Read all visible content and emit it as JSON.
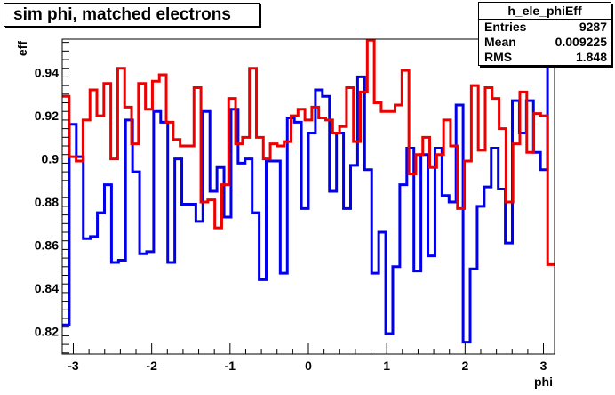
{
  "title": "sim phi, matched electrons",
  "stats": {
    "name": "h_ele_phiEff",
    "rows": [
      {
        "label": "Entries",
        "value": "9287"
      },
      {
        "label": "Mean",
        "value": "0.009225"
      },
      {
        "label": "RMS",
        "value": "1.848"
      }
    ]
  },
  "chart_data": {
    "type": "line",
    "style": "step",
    "xlabel": "phi",
    "ylabel": "eff",
    "xlim": [
      -3.14159,
      3.14159
    ],
    "ylim": [
      0.8095,
      0.9555
    ],
    "xticks": [
      -3,
      -2,
      -1,
      0,
      1,
      2,
      3
    ],
    "xtick_labels": [
      "-3",
      "-2",
      "-1",
      "0",
      "1",
      "2",
      "3"
    ],
    "yticks": [
      0.82,
      0.84,
      0.86,
      0.88,
      0.9,
      0.92,
      0.94
    ],
    "ytick_labels": [
      "0.82",
      "0.84",
      "0.86",
      "0.88",
      "0.9",
      "0.92",
      "0.94"
    ],
    "grid": false,
    "series": [
      {
        "color": "#0000ee",
        "values": [
          0.823,
          0.916,
          0.901,
          0.863,
          0.864,
          0.875,
          0.888,
          0.852,
          0.853,
          0.918,
          0.894,
          0.856,
          0.857,
          0.922,
          0.917,
          0.852,
          0.9,
          0.879,
          0.879,
          0.871,
          0.922,
          0.885,
          0.896,
          0.873,
          0.923,
          0.898,
          0.9,
          0.875,
          0.844,
          0.899,
          0.899,
          0.847,
          0.919,
          0.917,
          0.877,
          0.912,
          0.932,
          0.929,
          0.885,
          0.912,
          0.877,
          0.897,
          0.938,
          0.895,
          0.847,
          0.866,
          0.819,
          0.85,
          0.888,
          0.905,
          0.848,
          0.902,
          0.855,
          0.905,
          0.883,
          0.88,
          0.925,
          0.815,
          0.849,
          0.878,
          0.887,
          0.905,
          0.886,
          0.861,
          0.927,
          0.912,
          0.927,
          0.903,
          0.895,
          0.949
        ]
      },
      {
        "color": "#ee0000",
        "values": [
          0.929,
          0.901,
          0.899,
          0.918,
          0.932,
          0.92,
          0.935,
          0.9,
          0.942,
          0.924,
          0.907,
          0.935,
          0.923,
          0.936,
          0.939,
          0.917,
          0.909,
          0.906,
          0.906,
          0.933,
          0.88,
          0.881,
          0.868,
          0.888,
          0.928,
          0.907,
          0.91,
          0.942,
          0.91,
          0.9,
          0.907,
          0.906,
          0.908,
          0.92,
          0.923,
          0.918,
          0.924,
          0.919,
          0.918,
          0.912,
          0.915,
          0.933,
          0.908,
          0.931,
          0.955,
          0.926,
          0.922,
          0.922,
          0.925,
          0.941,
          0.893,
          0.902,
          0.91,
          0.896,
          0.902,
          0.918,
          0.906,
          0.877,
          0.899,
          0.934,
          0.904,
          0.933,
          0.928,
          0.914,
          0.88,
          0.907,
          0.931,
          0.903,
          0.921,
          0.92,
          0.851
        ]
      }
    ]
  }
}
